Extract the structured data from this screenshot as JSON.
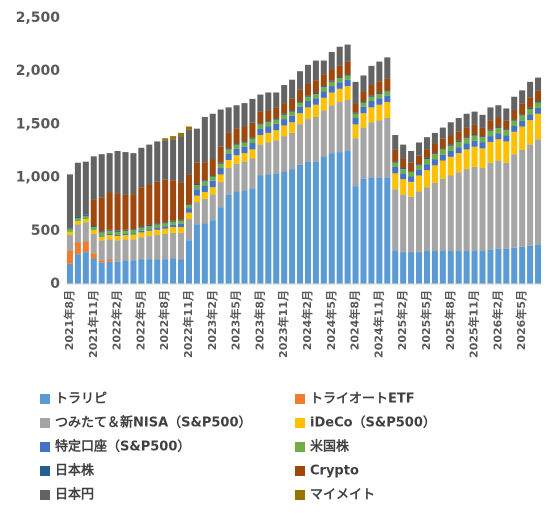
{
  "chart_data": {
    "type": "stacked_bar",
    "categories": [
      "2021年8月",
      null,
      null,
      "2021年11月",
      null,
      null,
      "2022年2月",
      null,
      null,
      "2022年5月",
      null,
      null,
      "2022年8月",
      null,
      null,
      "2022年11月",
      null,
      null,
      "2023年2月",
      null,
      null,
      "2023年5月",
      null,
      null,
      "2023年8月",
      null,
      null,
      "2023年11月",
      null,
      null,
      "2024年2月",
      null,
      null,
      "2024年5月",
      null,
      null,
      "2024年8月",
      null,
      null,
      "2024年11月",
      null,
      null,
      "2025年2月",
      null,
      null,
      "2025年5月",
      null,
      null,
      "2025年8月",
      null,
      null,
      "2025年11月",
      null,
      null,
      "2026年2月",
      null,
      null,
      "2026年5月",
      null,
      null
    ],
    "ylim": [
      0,
      2500
    ],
    "yticks": [
      0,
      500,
      {
        "value": 1000,
        "label": "1,000"
      },
      {
        "value": 1500,
        "label": "1,500"
      },
      {
        "value": 2000,
        "label": "2,000"
      },
      {
        "value": 2500,
        "label": "2,500"
      }
    ],
    "series": [
      {
        "name": "トラリピ",
        "color": "#5b9bd5",
        "values": [
          190,
          280,
          300,
          240,
          200,
          210,
          210,
          220,
          220,
          230,
          230,
          230,
          230,
          240,
          230,
          410,
          560,
          570,
          600,
          720,
          840,
          870,
          880,
          900,
          1020,
          1030,
          1040,
          1060,
          1080,
          1120,
          1150,
          1150,
          1200,
          1230,
          1240,
          1250,
          920,
          990,
          1000,
          1000,
          1000,
          310,
          300,
          300,
          300,
          310,
          310,
          310,
          310,
          310,
          310,
          310,
          310,
          320,
          330,
          330,
          340,
          350,
          360,
          370
        ]
      },
      {
        "name": "トライオートETF",
        "color": "#ed7d31",
        "values": [
          120,
          110,
          100,
          50,
          20,
          20,
          0,
          0,
          0,
          0,
          0,
          0,
          0,
          0,
          0,
          0,
          0,
          0,
          0,
          0,
          0,
          0,
          0,
          0,
          0,
          0,
          0,
          0,
          0,
          0,
          0,
          0,
          0,
          0,
          0,
          0,
          0,
          0,
          0,
          0,
          0,
          0,
          0,
          0,
          0,
          0,
          0,
          0,
          0,
          0,
          0,
          0,
          0,
          0,
          0,
          0,
          0,
          0,
          0,
          0
        ]
      },
      {
        "name": "つみたて＆新NISA（S&P500）",
        "color": "#a5a5a5",
        "values": [
          150,
          170,
          180,
          180,
          190,
          190,
          200,
          200,
          200,
          210,
          220,
          230,
          240,
          240,
          250,
          200,
          210,
          230,
          240,
          240,
          250,
          260,
          270,
          280,
          290,
          300,
          310,
          330,
          340,
          380,
          400,
          420,
          430,
          450,
          470,
          480,
          450,
          480,
          520,
          540,
          560,
          580,
          540,
          520,
          570,
          600,
          640,
          680,
          710,
          740,
          770,
          790,
          780,
          820,
          830,
          810,
          880,
          910,
          950,
          990
        ]
      },
      {
        "name": "iDeCo（S&P500）",
        "color": "#ffc000",
        "values": [
          30,
          30,
          30,
          35,
          35,
          40,
          40,
          40,
          45,
          45,
          50,
          50,
          50,
          55,
          55,
          60,
          60,
          65,
          70,
          70,
          75,
          80,
          80,
          85,
          90,
          90,
          95,
          100,
          100,
          105,
          110,
          115,
          120,
          120,
          125,
          130,
          130,
          135,
          140,
          145,
          150,
          150,
          145,
          140,
          150,
          160,
          165,
          170,
          175,
          180,
          185,
          190,
          185,
          195,
          200,
          200,
          210,
          220,
          230,
          240
        ]
      },
      {
        "name": "特定口座（S&P500）",
        "color": "#4472c4",
        "values": [
          0,
          0,
          0,
          0,
          10,
          10,
          10,
          10,
          10,
          15,
          15,
          20,
          20,
          20,
          30,
          40,
          60,
          60,
          60,
          60,
          60,
          60,
          60,
          60,
          60,
          60,
          60,
          60,
          60,
          60,
          60,
          60,
          60,
          60,
          60,
          60,
          60,
          60,
          60,
          60,
          60,
          60,
          55,
          50,
          55,
          55,
          55,
          55,
          55,
          55,
          55,
          55,
          55,
          55,
          55,
          55,
          55,
          55,
          55,
          55
        ]
      },
      {
        "name": "米国株",
        "color": "#70ad47",
        "values": [
          30,
          30,
          30,
          30,
          30,
          30,
          30,
          30,
          30,
          30,
          30,
          30,
          30,
          30,
          30,
          30,
          40,
          40,
          40,
          40,
          40,
          40,
          40,
          40,
          40,
          40,
          40,
          40,
          40,
          40,
          40,
          40,
          40,
          40,
          40,
          40,
          40,
          40,
          40,
          40,
          40,
          40,
          40,
          40,
          40,
          50,
          50,
          50,
          50,
          50,
          50,
          50,
          50,
          50,
          50,
          50,
          50,
          50,
          50,
          50
        ]
      },
      {
        "name": "日本株",
        "color": "#255e91",
        "values": [
          10,
          10,
          10,
          10,
          10,
          10,
          10,
          10,
          10,
          10,
          10,
          10,
          10,
          10,
          10,
          10,
          10,
          10,
          10,
          10,
          10,
          10,
          10,
          10,
          10,
          10,
          10,
          10,
          10,
          10,
          10,
          10,
          10,
          10,
          10,
          10,
          10,
          10,
          10,
          10,
          10,
          10,
          10,
          10,
          10,
          10,
          10,
          10,
          10,
          10,
          10,
          10,
          10,
          10,
          10,
          10,
          10,
          10,
          10,
          10
        ]
      },
      {
        "name": "Crypto",
        "color": "#9e480e",
        "values": [
          0,
          0,
          0,
          250,
          320,
          350,
          350,
          330,
          330,
          370,
          380,
          390,
          400,
          380,
          350,
          280,
          200,
          170,
          150,
          150,
          150,
          140,
          140,
          140,
          110,
          100,
          100,
          100,
          110,
          110,
          110,
          120,
          110,
          110,
          110,
          120,
          90,
          90,
          100,
          110,
          110,
          110,
          90,
          80,
          80,
          80,
          90,
          90,
          90,
          90,
          90,
          90,
          80,
          90,
          90,
          80,
          90,
          100,
          100,
          100
        ]
      },
      {
        "name": "日本円",
        "color": "#636363",
        "values": [
          500,
          510,
          500,
          405,
          405,
          370,
          400,
          400,
          385,
          370,
          375,
          380,
          370,
          385,
          435,
          420,
          320,
          425,
          430,
          350,
          235,
          220,
          220,
          225,
          160,
          170,
          145,
          170,
          180,
          175,
          180,
          185,
          130,
          160,
          175,
          160,
          200,
          155,
          180,
          185,
          200,
          140,
          130,
          110,
          125,
          115,
          100,
          105,
          120,
          125,
          130,
          125,
          120,
          120,
          115,
          115,
          125,
          125,
          145,
          125
        ]
      },
      {
        "name": "マイメイト",
        "color": "#997300",
        "values": [
          0,
          0,
          0,
          0,
          0,
          0,
          0,
          0,
          0,
          0,
          0,
          0,
          20,
          30,
          30,
          30,
          0,
          0,
          0,
          0,
          0,
          0,
          0,
          0,
          0,
          0,
          0,
          0,
          0,
          0,
          0,
          0,
          0,
          0,
          0,
          0,
          0,
          0,
          0,
          0,
          0,
          0,
          0,
          0,
          0,
          0,
          0,
          0,
          0,
          0,
          0,
          0,
          0,
          0,
          0,
          0,
          0,
          0,
          0,
          0
        ]
      }
    ]
  }
}
